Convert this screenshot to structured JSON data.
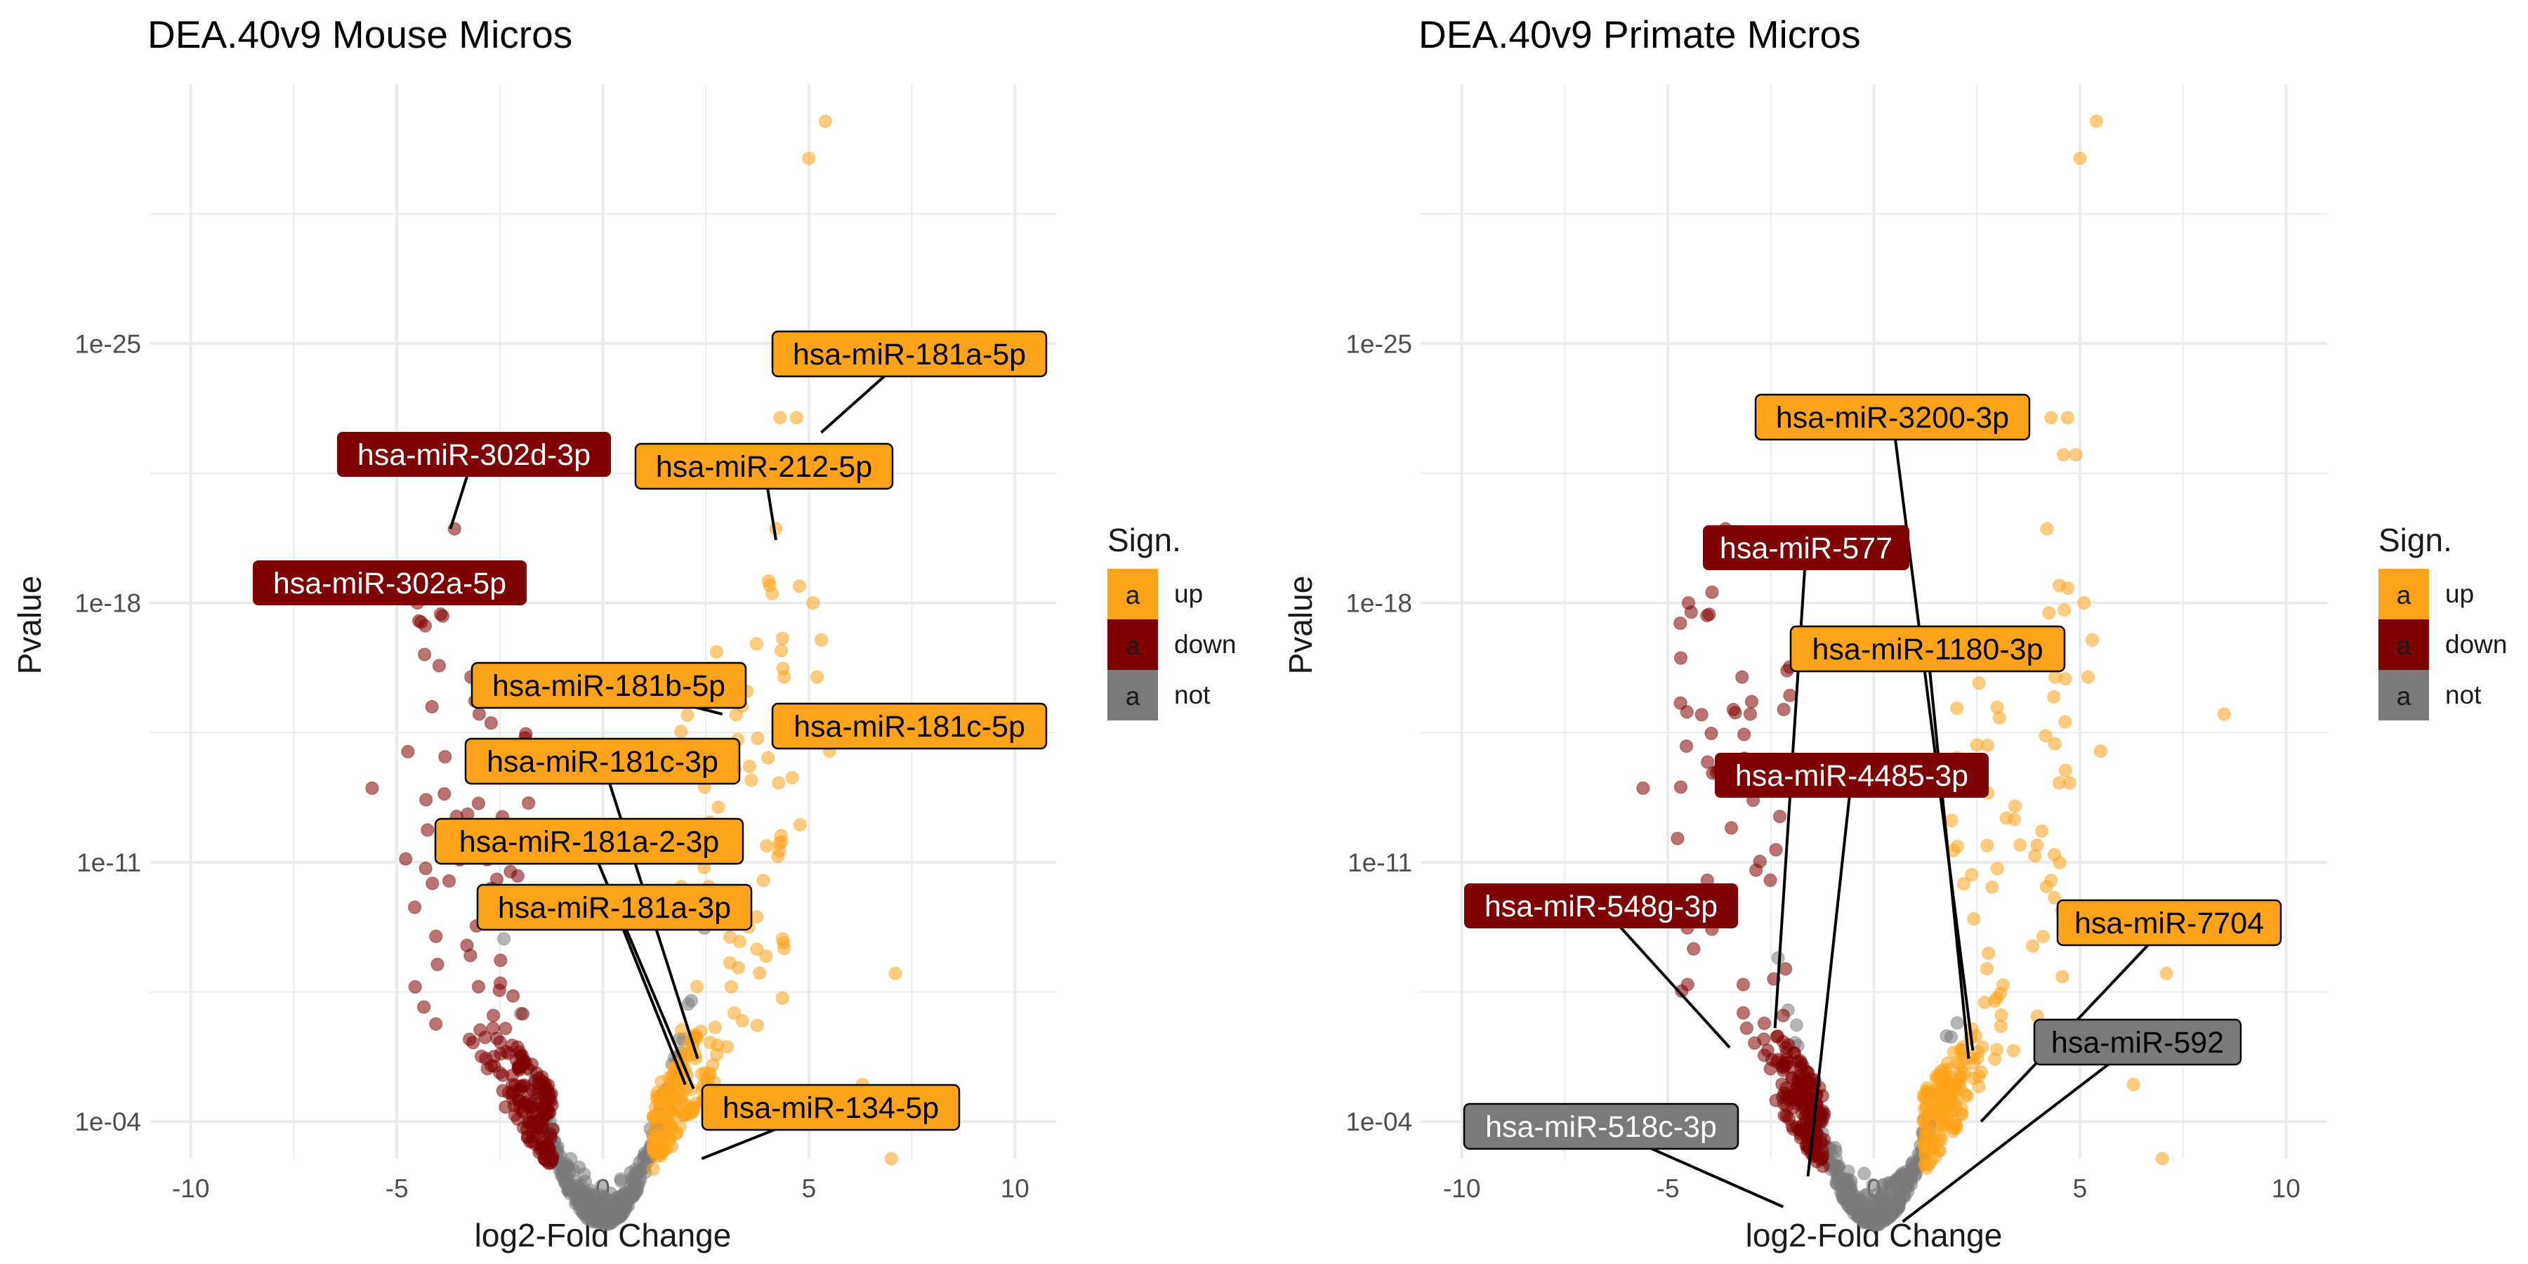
{
  "chart_data": [
    {
      "type": "scatter",
      "title": "DEA.40v9 Mouse Micros",
      "xlabel": "log2-Fold Change",
      "ylabel": "Pvalue",
      "xlim": [
        -11,
        11
      ],
      "ylim": [
        0.001,
        1e-32
      ],
      "y_scale": "log10-reversed",
      "x_ticks": [
        "-10",
        "-5",
        "0",
        "5",
        "10"
      ],
      "y_ticks": [
        "1e-25",
        "1e-18",
        "1e-11",
        "1e-04"
      ],
      "grid": true,
      "legend_position": "right",
      "labels": [
        {
          "text": "hsa-miR-181a-5p",
          "group": "up",
          "point": [
            5.3,
            2.5e-23
          ]
        },
        {
          "text": "hsa-miR-302d-3p",
          "group": "down",
          "point": [
            -3.7,
            1e-20
          ]
        },
        {
          "text": "hsa-miR-212-5p",
          "group": "up",
          "point": [
            4.2,
            2e-20
          ]
        },
        {
          "text": "hsa-miR-302a-5p",
          "group": "down",
          "point": [
            -4.5,
            1e-18
          ]
        },
        {
          "text": "hsa-miR-181b-5p",
          "group": "up",
          "point": [
            2.9,
            1e-15
          ]
        },
        {
          "text": "hsa-miR-181c-5p",
          "group": "up",
          "point": [
            5.4,
            3e-15
          ]
        },
        {
          "text": "hsa-miR-181c-3p",
          "group": "up",
          "point": [
            2.3,
            2e-06
          ]
        },
        {
          "text": "hsa-miR-181a-2-3p",
          "group": "up",
          "point": [
            2.2,
            1.3e-05
          ]
        },
        {
          "text": "hsa-miR-181a-3p",
          "group": "up",
          "point": [
            2.0,
            1e-05
          ]
        },
        {
          "text": "hsa-miR-134-5p",
          "group": "up",
          "point": [
            2.4,
            0.001
          ]
        }
      ]
    },
    {
      "type": "scatter",
      "title": "DEA.40v9 Primate Micros",
      "xlabel": "log2-Fold Change",
      "ylabel": "Pvalue",
      "xlim": [
        -11,
        11
      ],
      "ylim": [
        0.001,
        1e-32
      ],
      "y_scale": "log10-reversed",
      "x_ticks": [
        "-10",
        "-5",
        "0",
        "5",
        "10"
      ],
      "y_ticks": [
        "1e-25",
        "1e-18",
        "1e-11",
        "1e-04"
      ],
      "grid": true,
      "legend_position": "right",
      "labels": [
        {
          "text": "hsa-miR-3200-3p",
          "group": "up",
          "point": [
            2.4,
            1.2e-06
          ]
        },
        {
          "text": "hsa-miR-577",
          "group": "down",
          "point": [
            -2.4,
            3e-07
          ]
        },
        {
          "text": "hsa-miR-1180-3p",
          "group": "up",
          "point": [
            2.3,
            2e-06
          ]
        },
        {
          "text": "hsa-miR-4485-3p",
          "group": "down",
          "point": [
            -1.6,
            0.003
          ]
        },
        {
          "text": "hsa-miR-548g-3p",
          "group": "down",
          "point": [
            -3.5,
            1e-06
          ]
        },
        {
          "text": "hsa-miR-7704",
          "group": "up",
          "point": [
            2.6,
            0.0001
          ]
        },
        {
          "text": "hsa-miR-592",
          "group": "not",
          "point": [
            0.7,
            0.05
          ]
        },
        {
          "text": "hsa-miR-518c-3p",
          "group": "not",
          "point": [
            -2.2,
            0.02
          ]
        }
      ]
    }
  ],
  "legend": {
    "title": "Sign.",
    "key_glyph": "a",
    "items": [
      {
        "label": "up",
        "color": "#ffa31a"
      },
      {
        "label": "down",
        "color": "#7f0000"
      },
      {
        "label": "not",
        "color": "#7a7a7a"
      }
    ]
  },
  "colors": {
    "up": "#ffa31a",
    "down": "#7f0000",
    "not": "#7a7a7a",
    "grid": "#ebebeb"
  }
}
